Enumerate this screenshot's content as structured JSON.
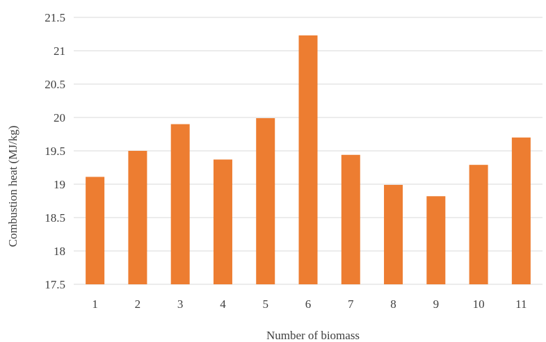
{
  "chart_data": {
    "type": "bar",
    "title": "",
    "xlabel": "Number of biomass",
    "ylabel": "Combustion heat (MJ/kg)",
    "categories": [
      "1",
      "2",
      "3",
      "4",
      "5",
      "6",
      "7",
      "8",
      "9",
      "10",
      "11"
    ],
    "values": [
      19.11,
      19.5,
      19.9,
      19.37,
      19.99,
      21.23,
      19.44,
      18.99,
      18.82,
      19.29,
      19.7
    ],
    "ylim": [
      17.5,
      21.5
    ],
    "yticks": [
      "17.5",
      "18",
      "18.5",
      "19",
      "19.5",
      "20",
      "20.5",
      "21",
      "21.5"
    ],
    "grid": true,
    "legend": "none",
    "bar_color": "#ED7D31",
    "grid_color": "#D9D9D9"
  }
}
